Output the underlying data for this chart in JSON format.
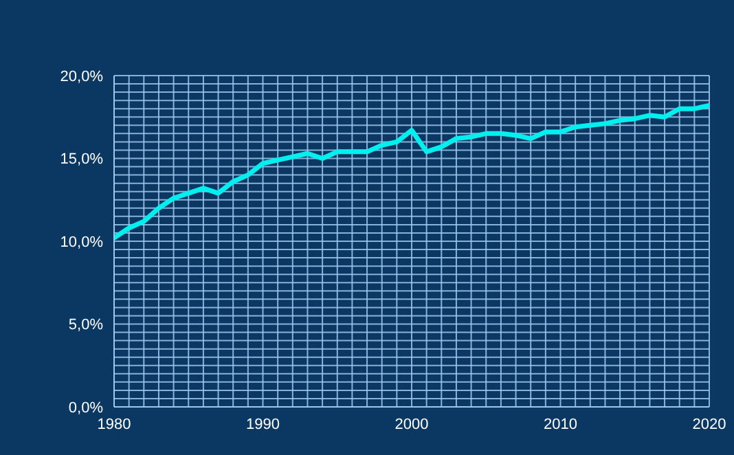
{
  "chart_data": {
    "type": "line",
    "x": [
      1980,
      1981,
      1982,
      1983,
      1984,
      1985,
      1986,
      1987,
      1988,
      1989,
      1990,
      1991,
      1992,
      1993,
      1994,
      1995,
      1996,
      1997,
      1998,
      1999,
      2000,
      2001,
      2002,
      2003,
      2004,
      2005,
      2006,
      2007,
      2008,
      2009,
      2010,
      2011,
      2012,
      2013,
      2014,
      2015,
      2016,
      2017,
      2018,
      2019,
      2020
    ],
    "series": [
      {
        "color": "#00f0f0",
        "values": [
          10.2,
          10.8,
          11.2,
          12.0,
          12.6,
          12.9,
          13.2,
          12.9,
          13.6,
          14.0,
          14.7,
          14.9,
          15.1,
          15.3,
          15.0,
          15.4,
          15.4,
          15.4,
          15.8,
          16.0,
          16.7,
          15.4,
          15.7,
          16.2,
          16.3,
          16.5,
          16.5,
          16.4,
          16.2,
          16.6,
          16.6,
          16.9,
          17.0,
          17.1,
          17.3,
          17.4,
          17.6,
          17.5,
          18.0,
          18.0,
          18.2
        ]
      }
    ],
    "xlim": [
      1980,
      2020
    ],
    "xticks": [
      1980,
      {
        "value": 1981,
        "label": null
      },
      {
        "value": 1982,
        "label": null
      },
      {
        "value": 1983,
        "label": null
      },
      {
        "value": 1984,
        "label": null
      },
      {
        "value": 1985,
        "label": null
      },
      {
        "value": 1986,
        "label": null
      },
      {
        "value": 1987,
        "label": null
      },
      {
        "value": 1988,
        "label": null
      },
      {
        "value": 1989,
        "label": null
      },
      1990,
      {
        "value": 1991,
        "label": null
      },
      {
        "value": 1992,
        "label": null
      },
      {
        "value": 1993,
        "label": null
      },
      {
        "value": 1994,
        "label": null
      },
      {
        "value": 1995,
        "label": null
      },
      {
        "value": 1996,
        "label": null
      },
      {
        "value": 1997,
        "label": null
      },
      {
        "value": 1998,
        "label": null
      },
      {
        "value": 1999,
        "label": null
      },
      2000,
      {
        "value": 2001,
        "label": null
      },
      {
        "value": 2002,
        "label": null
      },
      {
        "value": 2003,
        "label": null
      },
      {
        "value": 2004,
        "label": null
      },
      {
        "value": 2005,
        "label": null
      },
      {
        "value": 2006,
        "label": null
      },
      {
        "value": 2007,
        "label": null
      },
      {
        "value": 2008,
        "label": null
      },
      {
        "value": 2009,
        "label": null
      },
      2010,
      {
        "value": 2011,
        "label": null
      },
      {
        "value": 2012,
        "label": null
      },
      {
        "value": 2013,
        "label": null
      },
      {
        "value": 2014,
        "label": null
      },
      {
        "value": 2015,
        "label": null
      },
      {
        "value": 2016,
        "label": null
      },
      {
        "value": 2017,
        "label": null
      },
      {
        "value": 2018,
        "label": null
      },
      {
        "value": 2019,
        "label": null
      },
      2020
    ],
    "ylim": [
      0,
      20
    ],
    "yticks": [
      {
        "value": 0,
        "label": "0,0%"
      },
      {
        "value": 0.5,
        "label": null
      },
      {
        "value": 1,
        "label": null
      },
      {
        "value": 1.5,
        "label": null
      },
      {
        "value": 2,
        "label": null
      },
      {
        "value": 2.5,
        "label": null
      },
      {
        "value": 3,
        "label": null
      },
      {
        "value": 3.5,
        "label": null
      },
      {
        "value": 4,
        "label": null
      },
      {
        "value": 4.5,
        "label": null
      },
      {
        "value": 5,
        "label": "5,0%"
      },
      {
        "value": 5.5,
        "label": null
      },
      {
        "value": 6,
        "label": null
      },
      {
        "value": 6.5,
        "label": null
      },
      {
        "value": 7,
        "label": null
      },
      {
        "value": 7.5,
        "label": null
      },
      {
        "value": 8,
        "label": null
      },
      {
        "value": 8.5,
        "label": null
      },
      {
        "value": 9,
        "label": null
      },
      {
        "value": 9.5,
        "label": null
      },
      {
        "value": 10,
        "label": "10,0%"
      },
      {
        "value": 10.5,
        "label": null
      },
      {
        "value": 11,
        "label": null
      },
      {
        "value": 11.5,
        "label": null
      },
      {
        "value": 12,
        "label": null
      },
      {
        "value": 12.5,
        "label": null
      },
      {
        "value": 13,
        "label": null
      },
      {
        "value": 13.5,
        "label": null
      },
      {
        "value": 14,
        "label": null
      },
      {
        "value": 14.5,
        "label": null
      },
      {
        "value": 15,
        "label": "15,0%"
      },
      {
        "value": 15.5,
        "label": null
      },
      {
        "value": 16,
        "label": null
      },
      {
        "value": 16.5,
        "label": null
      },
      {
        "value": 17,
        "label": null
      },
      {
        "value": 17.5,
        "label": null
      },
      {
        "value": 18,
        "label": null
      },
      {
        "value": 18.5,
        "label": null
      },
      {
        "value": 19,
        "label": null
      },
      {
        "value": 19.5,
        "label": null
      },
      {
        "value": 20,
        "label": "20,0%"
      }
    ],
    "grid": true,
    "legend": false,
    "marker": "none",
    "line_style": "solid"
  }
}
